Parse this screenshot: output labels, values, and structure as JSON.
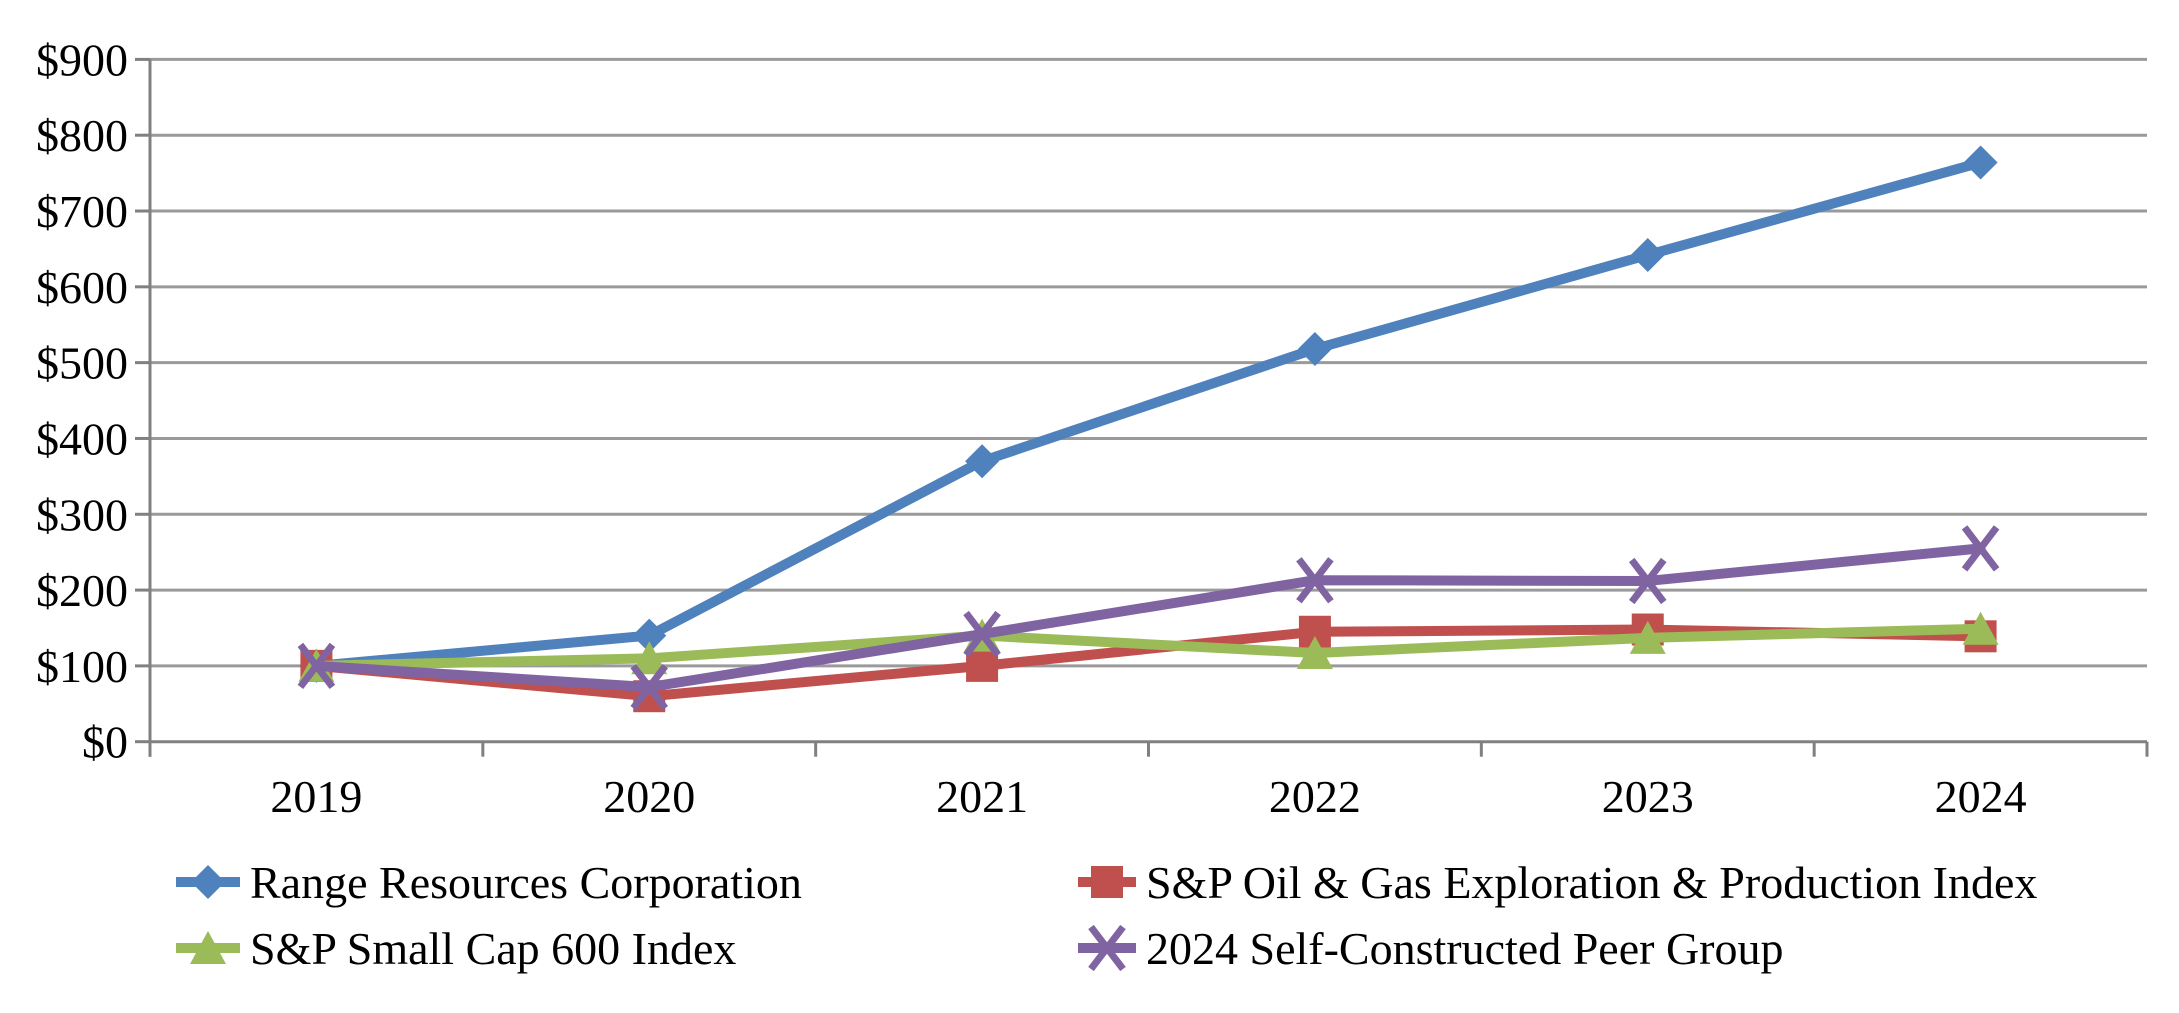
{
  "chart_data": {
    "type": "line",
    "title": "",
    "x_labels": [
      "2019",
      "2020",
      "2021",
      "2022",
      "2023",
      "2024"
    ],
    "y_axis": {
      "min": 0,
      "max": 900,
      "step": 100,
      "tick_prefix": "$",
      "tick_labels": [
        "$0",
        "$100",
        "$200",
        "$300",
        "$400",
        "$500",
        "$600",
        "$700",
        "$800",
        "$900"
      ]
    },
    "grid": true,
    "legend_position": "bottom",
    "legend_columns": 2,
    "series": [
      {
        "name": "Range Resources Corporation",
        "marker": "diamond",
        "color": "#4F81BD",
        "values": [
          100,
          140,
          370,
          518,
          642,
          764
        ]
      },
      {
        "name": "S&P Oil & Gas Exploration & Production Index",
        "marker": "square",
        "color": "#C0504D",
        "values": [
          100,
          60,
          100,
          145,
          148,
          139
        ]
      },
      {
        "name": "S&P Small Cap 600 Index",
        "marker": "triangle",
        "color": "#9BBB59",
        "values": [
          100,
          110,
          140,
          117,
          137,
          149
        ]
      },
      {
        "name": "2024 Self-Constructed Peer Group",
        "marker": "x",
        "color": "#8064A2",
        "values": [
          100,
          72,
          142,
          213,
          212,
          255
        ]
      }
    ]
  },
  "colors": {
    "background": "#FFFFFF",
    "gridline": "#9A9A9A",
    "axis": "#808080",
    "text": "#000000"
  }
}
